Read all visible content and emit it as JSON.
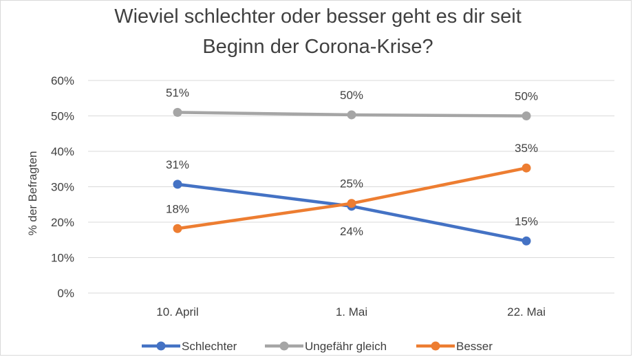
{
  "chart_data": {
    "type": "line",
    "title": "Wieviel schlechter oder besser geht es dir seit Beginn der Corona-Krise?",
    "title_lines": [
      "Wieviel schlechter oder besser geht es dir seit",
      "Beginn der Corona-Krise?"
    ],
    "xlabel": "",
    "ylabel": "% der Befragten",
    "categories": [
      "10. April",
      "1. Mai",
      "22. Mai"
    ],
    "ylim": [
      0,
      60
    ],
    "yticks": [
      0,
      10,
      20,
      30,
      40,
      50,
      60
    ],
    "ytick_labels": [
      "0%",
      "10%",
      "20%",
      "30%",
      "40%",
      "50%",
      "60%"
    ],
    "grid": true,
    "legend_position": "bottom",
    "series": [
      {
        "name": "Schlechter",
        "color": "#4472c4",
        "values": [
          30.7,
          24.5,
          14.7
        ],
        "labels": [
          "31%",
          "24%",
          "15%"
        ],
        "label_pos": [
          "above",
          "below",
          "above"
        ]
      },
      {
        "name": "Ungefähr gleich",
        "color": "#a5a5a5",
        "values": [
          51.0,
          50.3,
          50.0
        ],
        "labels": [
          "51%",
          "50%",
          "50%"
        ],
        "label_pos": [
          "above",
          "above",
          "above"
        ]
      },
      {
        "name": "Besser",
        "color": "#ed7d31",
        "values": [
          18.2,
          25.3,
          35.3
        ],
        "labels": [
          "18%",
          "25%",
          "35%"
        ],
        "label_pos": [
          "above",
          "above",
          "above"
        ]
      }
    ]
  }
}
